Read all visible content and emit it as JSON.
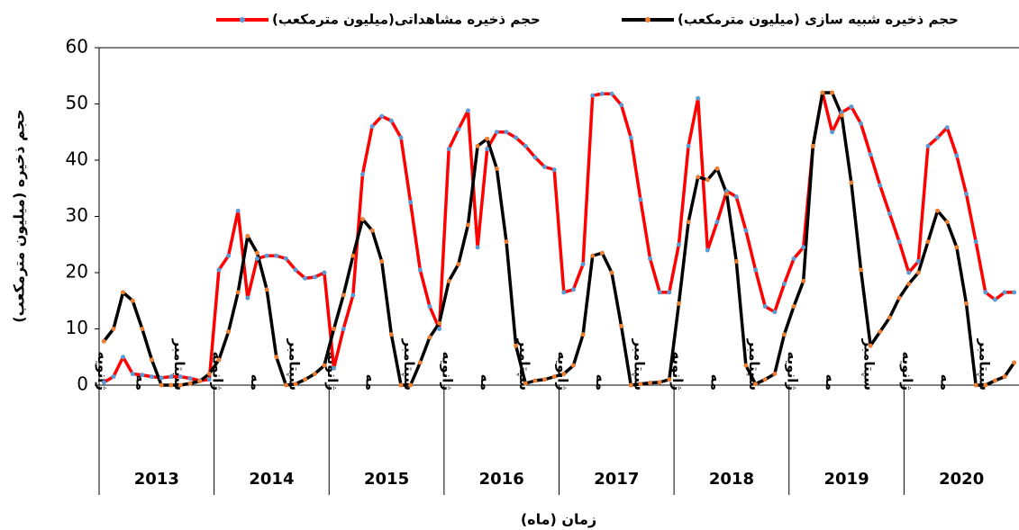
{
  "chart_data": {
    "type": "line",
    "y_label": "حجم ذخیره  (میلیون مترمکعب)",
    "x_label": "زمان (ماه)",
    "categories": [
      "ژانویه",
      null,
      null,
      null,
      "مه",
      null,
      null,
      null,
      "سپتامبر",
      null,
      null,
      null,
      "ژانویه",
      null,
      null,
      null,
      "مه",
      null,
      null,
      null,
      "سپتامبر",
      null,
      null,
      null,
      "ژانویه",
      null,
      null,
      null,
      "مه",
      null,
      null,
      null,
      "سپتامبر",
      null,
      null,
      null,
      "ژانویه",
      null,
      null,
      null,
      "مه",
      null,
      null,
      null,
      "سپتامبر",
      null,
      null,
      null,
      "ژانویه",
      null,
      null,
      null,
      "مه",
      null,
      null,
      null,
      "سپتامبر",
      null,
      null,
      null,
      "ژانویه",
      null,
      null,
      null,
      "مه",
      null,
      null,
      null,
      "سپتامبر",
      null,
      null,
      null,
      "ژانویه",
      null,
      null,
      null,
      "مه",
      null,
      null,
      null,
      "سپتامبر",
      null,
      null,
      null,
      "ژانویه",
      null,
      null,
      null,
      "مه",
      null,
      null,
      null,
      "سپتامبر",
      null,
      null,
      null
    ],
    "year_groups": [
      "2013",
      "2014",
      "2015",
      "2016",
      "2017",
      "2018",
      "2019",
      "2020"
    ],
    "series": [
      {
        "name": "حجم ذخیره مشاهداتی(میلیون مترمکعب)",
        "color": "#ff0000",
        "marker_color": "#5b9bd5",
        "values": [
          0.5,
          1.5,
          5,
          2,
          1.8,
          1.5,
          1.3,
          1.5,
          1.5,
          1.2,
          0.8,
          1,
          20.5,
          23,
          31,
          15.5,
          22.5,
          23,
          23,
          22.5,
          20.5,
          19,
          19.2,
          20,
          3,
          10,
          16,
          37.5,
          46,
          47.8,
          47,
          44,
          32.5,
          20.5,
          14,
          10,
          42,
          45.5,
          48.8,
          24.5,
          42,
          45,
          45,
          44,
          42.5,
          40.5,
          38.8,
          38.3,
          16.5,
          17,
          21.5,
          51.5,
          51.8,
          51.8,
          49.8,
          44,
          33,
          22.5,
          16.5,
          16.5,
          25,
          42.5,
          51,
          24,
          29,
          34.5,
          33.5,
          27.5,
          20.5,
          14,
          13,
          18,
          22.5,
          24.5,
          42.5,
          52,
          45,
          48.5,
          49.5,
          46.5,
          41,
          35.5,
          30.5,
          25.5,
          20,
          22,
          42.5,
          44,
          45.8,
          40.8,
          34,
          25.5,
          16.5,
          15.2,
          16.5,
          16.5
        ]
      },
      {
        "name": "حجم ذخیره شبیه سازی  (میلیون مترمکعب)",
        "color": "#000000",
        "marker_color": "#ed7d31",
        "values": [
          7.8,
          10,
          16.5,
          15,
          10,
          4.5,
          0,
          0,
          0,
          0.3,
          0.7,
          2,
          4.5,
          9.5,
          16.5,
          26.5,
          23.5,
          17,
          5,
          0,
          0.2,
          1,
          2,
          3.5,
          10,
          16,
          23,
          29.5,
          27.5,
          22,
          9,
          0,
          0,
          4,
          8.5,
          11,
          18.5,
          21.5,
          28.5,
          42.5,
          43.8,
          38.5,
          25.5,
          7,
          0.3,
          0.8,
          1,
          1.5,
          2,
          3.5,
          9,
          23,
          23.5,
          20,
          10.5,
          0,
          0.2,
          0.4,
          0.5,
          1,
          14.5,
          29,
          37,
          36.5,
          38.5,
          34,
          22,
          3.5,
          0.2,
          1,
          2,
          9,
          14,
          18.5,
          42.5,
          52,
          52,
          48,
          36,
          20.5,
          7,
          9.5,
          12,
          15.5,
          18,
          20,
          25.5,
          31,
          29,
          24.5,
          14.5,
          0,
          0,
          0.8,
          1.5,
          4
        ]
      }
    ],
    "ylim": [
      0,
      60
    ],
    "yticks": [
      0,
      10,
      20,
      30,
      40,
      50,
      60
    ],
    "grid": false
  }
}
